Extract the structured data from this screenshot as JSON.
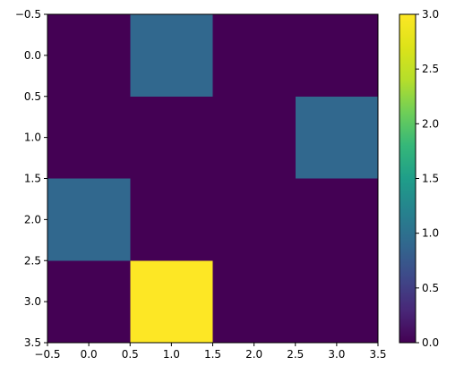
{
  "chart_data": {
    "type": "heatmap",
    "title": "",
    "xlabel": "",
    "ylabel": "",
    "x_ticks": [
      "−0.5",
      "0.0",
      "0.5",
      "1.0",
      "1.5",
      "2.0",
      "2.5",
      "3.0",
      "3.5"
    ],
    "y_ticks": [
      "−0.5",
      "0.0",
      "0.5",
      "1.0",
      "1.5",
      "2.0",
      "2.5",
      "3.0",
      "3.5"
    ],
    "xlim": [
      -0.5,
      3.5
    ],
    "ylim": [
      3.5,
      -0.5
    ],
    "matrix": [
      [
        0,
        1,
        0,
        0
      ],
      [
        0,
        0,
        0,
        1
      ],
      [
        1,
        0,
        0,
        0
      ],
      [
        0,
        3,
        0,
        0
      ]
    ],
    "colormap": "viridis",
    "color_range": [
      0,
      3
    ],
    "colorbar_ticks": [
      "0.0",
      "0.5",
      "1.0",
      "1.5",
      "2.0",
      "2.5",
      "3.0"
    ],
    "colors": {
      "v0": "#440154",
      "v1": "#31688e",
      "v3": "#fde725"
    }
  }
}
